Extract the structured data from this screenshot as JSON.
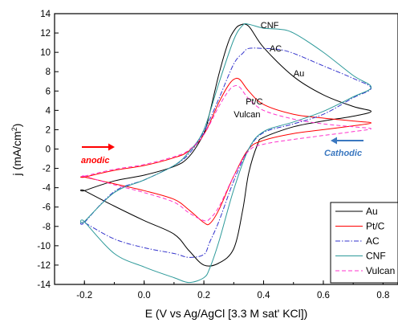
{
  "chart_data": {
    "type": "line",
    "title": "",
    "xlabel": "E (V vs Ag/AgCl [3.3 M sat' KCl])",
    "ylabel": "j (mA/cm²)",
    "ylabel_parts": {
      "prefix": "j (mA/cm",
      "sup": "2",
      "suffix": ")"
    },
    "xlim": [
      -0.3,
      0.85
    ],
    "ylim": [
      -14,
      14
    ],
    "xticks": [
      -0.2,
      0.0,
      0.2,
      0.4,
      0.6,
      0.8
    ],
    "yticks": [
      -14,
      -12,
      -10,
      -8,
      -6,
      -4,
      -2,
      0,
      2,
      4,
      6,
      8,
      10,
      12,
      14
    ],
    "grid": false,
    "legend_position": "bottom-right",
    "series": [
      {
        "name": "Au",
        "color": "#000000",
        "dash": "solid",
        "x": [
          -0.2,
          -0.1,
          0.0,
          0.1,
          0.15,
          0.2,
          0.22,
          0.25,
          0.28,
          0.3,
          0.32,
          0.35,
          0.4,
          0.5,
          0.6,
          0.7,
          0.76,
          0.7,
          0.6,
          0.5,
          0.4,
          0.38,
          0.35,
          0.33,
          0.3,
          0.25,
          0.2,
          0.15,
          0.1,
          0.0,
          -0.1,
          -0.2
        ],
        "y": [
          -4.3,
          -3.3,
          -2.7,
          -1.8,
          -0.8,
          1.6,
          3.8,
          7.7,
          10.9,
          12.2,
          12.8,
          12.7,
          10.5,
          7.5,
          5.6,
          4.4,
          3.9,
          3.4,
          2.9,
          2.3,
          1.2,
          0.5,
          -2.5,
          -6.3,
          -10.3,
          -11.8,
          -12.0,
          -10.5,
          -8.8,
          -7.4,
          -5.9,
          -4.3
        ]
      },
      {
        "name": "Pt/C",
        "color": "#ff0000",
        "dash": "solid",
        "x": [
          -0.2,
          -0.1,
          0.0,
          0.1,
          0.15,
          0.2,
          0.25,
          0.28,
          0.3,
          0.32,
          0.35,
          0.4,
          0.5,
          0.6,
          0.7,
          0.76,
          0.7,
          0.6,
          0.5,
          0.4,
          0.35,
          0.3,
          0.25,
          0.22,
          0.2,
          0.15,
          0.1,
          0.0,
          -0.1,
          -0.2
        ],
        "y": [
          -2.9,
          -2.2,
          -1.7,
          -0.9,
          -0.2,
          1.5,
          4.8,
          6.5,
          7.2,
          7.2,
          6.0,
          4.6,
          3.6,
          3.2,
          2.9,
          2.7,
          2.4,
          2.0,
          1.6,
          0.9,
          0.0,
          -2.8,
          -6.3,
          -7.7,
          -7.6,
          -6.3,
          -5.2,
          -4.3,
          -3.6,
          -2.9
        ]
      },
      {
        "name": "AC",
        "color": "#3333cc",
        "dash": "dashdot",
        "x": [
          -0.2,
          -0.1,
          0.0,
          0.1,
          0.15,
          0.2,
          0.25,
          0.3,
          0.33,
          0.35,
          0.4,
          0.45,
          0.5,
          0.6,
          0.7,
          0.76,
          0.7,
          0.6,
          0.5,
          0.4,
          0.35,
          0.3,
          0.25,
          0.22,
          0.2,
          0.15,
          0.1,
          0.0,
          -0.1,
          -0.2
        ],
        "y": [
          -7.6,
          -4.4,
          -3.2,
          -1.7,
          -0.5,
          1.8,
          5.2,
          8.8,
          9.9,
          10.4,
          10.4,
          10.3,
          9.9,
          8.6,
          7.3,
          6.3,
          5.3,
          3.6,
          2.6,
          1.7,
          0.0,
          -3.3,
          -7.5,
          -9.6,
          -10.9,
          -11.2,
          -10.8,
          -10.2,
          -9.3,
          -7.6
        ]
      },
      {
        "name": "CNF",
        "color": "#2e9a9a",
        "dash": "solid",
        "x": [
          -0.2,
          -0.1,
          0.0,
          0.1,
          0.15,
          0.2,
          0.25,
          0.3,
          0.33,
          0.35,
          0.4,
          0.45,
          0.5,
          0.6,
          0.7,
          0.76,
          0.7,
          0.6,
          0.5,
          0.4,
          0.35,
          0.3,
          0.25,
          0.22,
          0.2,
          0.15,
          0.1,
          0.0,
          -0.1,
          -0.2
        ],
        "y": [
          -7.5,
          -4.5,
          -3.2,
          -1.7,
          -0.3,
          2.0,
          6.8,
          11.3,
          12.8,
          12.9,
          12.5,
          12.4,
          12.0,
          10.0,
          7.6,
          6.4,
          5.4,
          3.9,
          2.8,
          1.8,
          0.0,
          -4.2,
          -9.6,
          -12.3,
          -13.3,
          -13.8,
          -13.3,
          -12.2,
          -10.8,
          -7.5
        ]
      },
      {
        "name": "Vulcan",
        "color": "#ff33cc",
        "dash": "dashed",
        "x": [
          -0.2,
          -0.1,
          0.0,
          0.1,
          0.15,
          0.2,
          0.25,
          0.28,
          0.3,
          0.32,
          0.35,
          0.4,
          0.5,
          0.6,
          0.7,
          0.76,
          0.7,
          0.6,
          0.5,
          0.4,
          0.35,
          0.3,
          0.25,
          0.22,
          0.2,
          0.15,
          0.1,
          0.0,
          -0.1,
          -0.2
        ],
        "y": [
          -2.8,
          -2.1,
          -1.6,
          -0.8,
          -0.1,
          1.5,
          4.4,
          5.9,
          6.5,
          6.4,
          5.2,
          4.0,
          3.1,
          2.6,
          2.3,
          2.1,
          1.8,
          1.4,
          1.0,
          0.5,
          -0.2,
          -2.8,
          -6.0,
          -7.2,
          -7.4,
          -6.6,
          -5.5,
          -4.5,
          -3.7,
          -2.8
        ]
      }
    ],
    "annotations": [
      {
        "text": "CNF",
        "x": 0.39,
        "y": 12.5
      },
      {
        "text": "AC",
        "x": 0.42,
        "y": 10.1
      },
      {
        "text": "Au",
        "x": 0.5,
        "y": 7.5
      },
      {
        "text": "Pt/C",
        "x": 0.34,
        "y": 4.6
      },
      {
        "text": "Vulcan",
        "x": 0.3,
        "y": 3.3
      }
    ],
    "arrow_labels": {
      "anodic": {
        "text": "anodic",
        "color": "#ff0000"
      },
      "cathodic": {
        "text": "Cathodic",
        "color": "#3b78c0"
      }
    }
  }
}
